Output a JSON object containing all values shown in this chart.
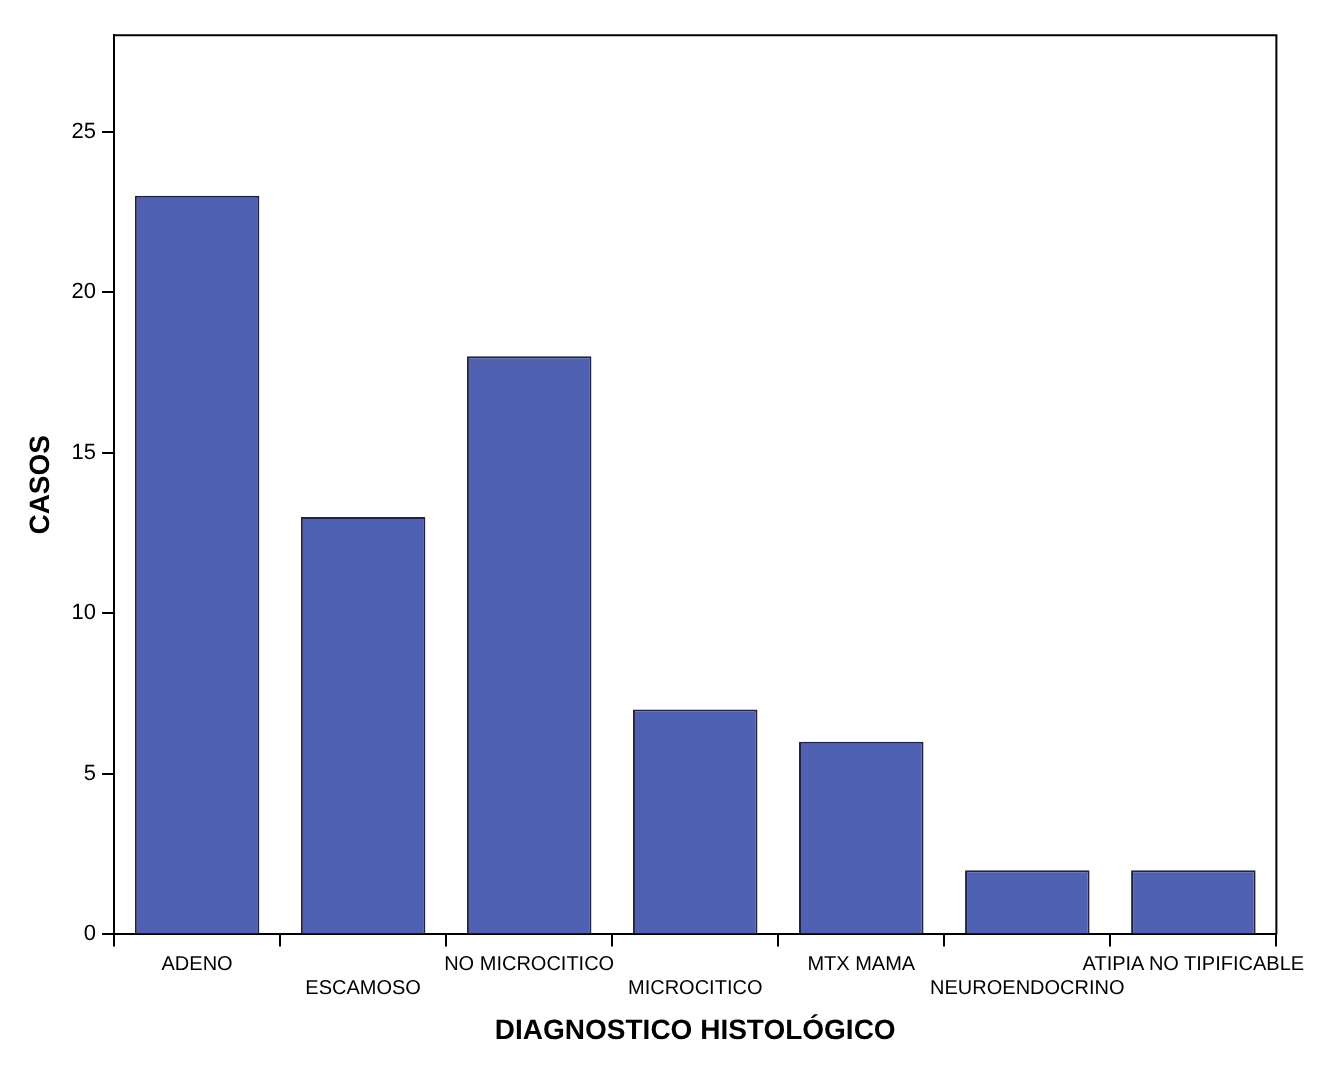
{
  "chart_data": {
    "type": "bar",
    "xlabel": "DIAGNOSTICO HISTOLÓGICO",
    "ylabel": "CASOS",
    "categories": [
      "ADENO",
      "ESCAMOSO",
      "NO MICROCITICO",
      "MICROCITICO",
      "MTX MAMA",
      "NEUROENDOCRINO",
      "ATIPIA NO TIPIFICABLE"
    ],
    "values": [
      23,
      13,
      18,
      7,
      6,
      2,
      2
    ],
    "color": "#5061b1",
    "ylim": [
      0,
      28
    ],
    "yticks": [
      0,
      5,
      10,
      15,
      20,
      25
    ],
    "grid": false,
    "legend": false
  }
}
